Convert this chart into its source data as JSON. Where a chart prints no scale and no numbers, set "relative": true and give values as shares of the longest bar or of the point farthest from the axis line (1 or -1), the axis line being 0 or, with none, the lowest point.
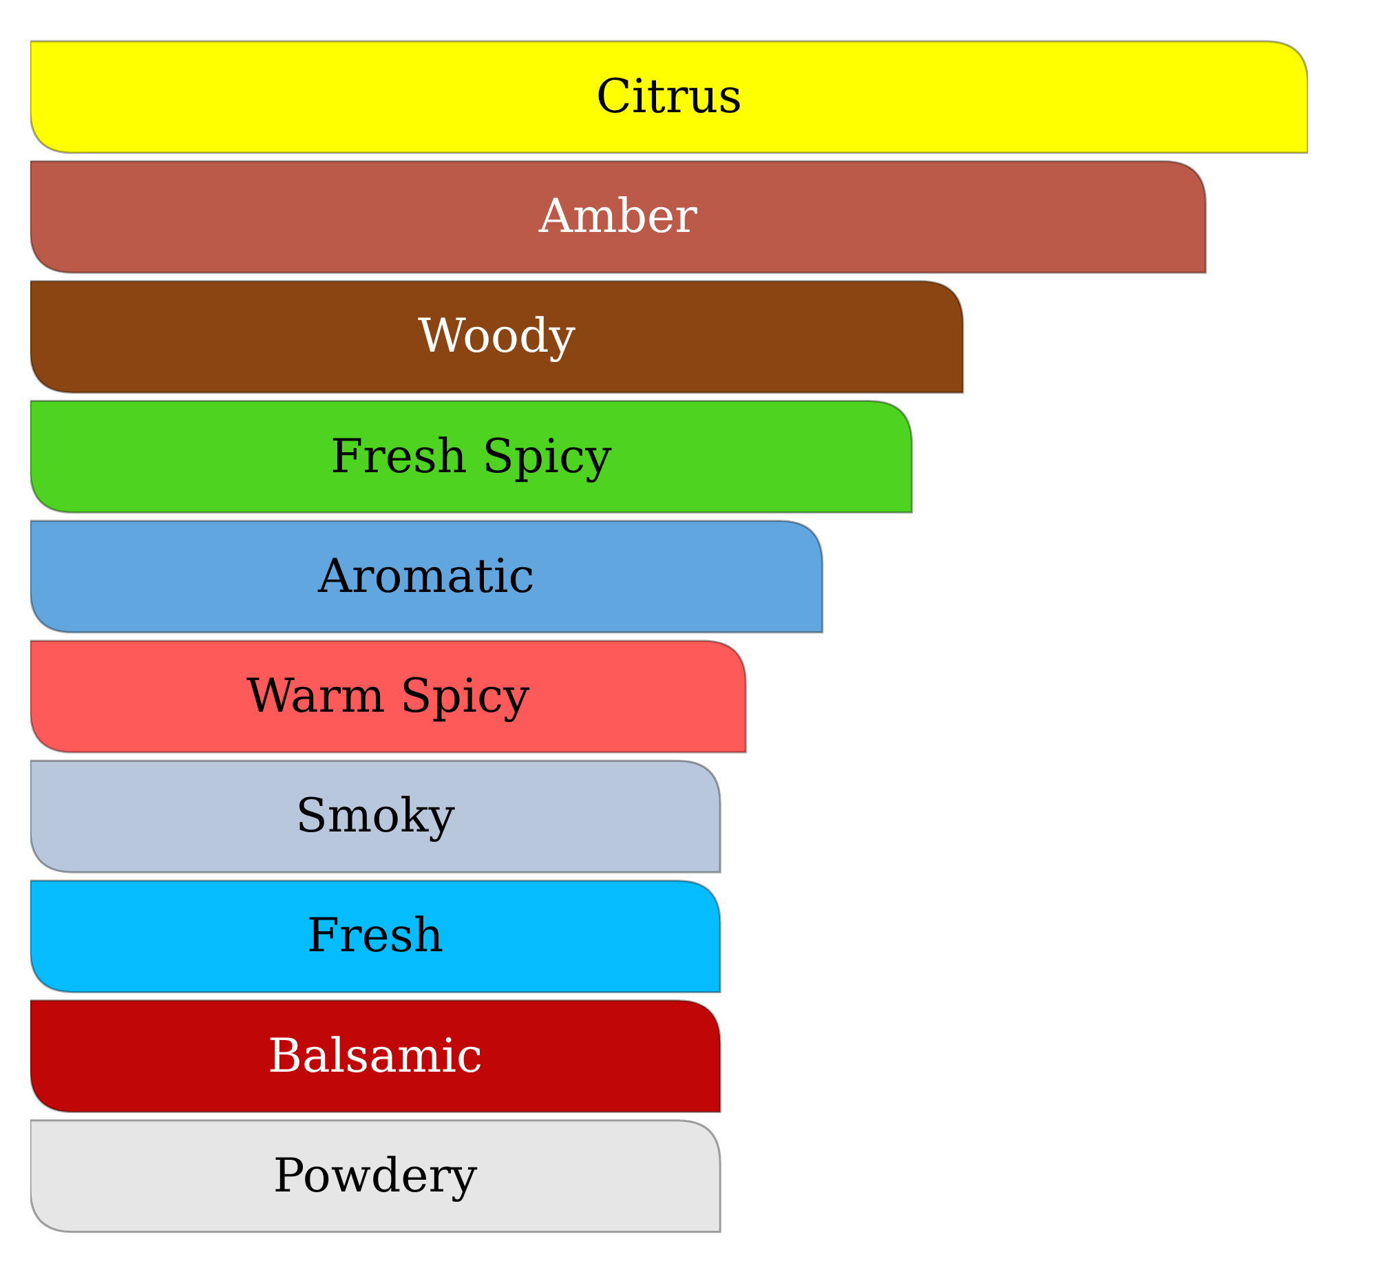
{
  "chart_data": {
    "type": "bar",
    "orientation": "horizontal",
    "relative": true,
    "categories": [
      "Citrus",
      "Amber",
      "Woody",
      "Fresh Spicy",
      "Aromatic",
      "Warm Spicy",
      "Smoky",
      "Fresh",
      "Balsamic",
      "Powdery"
    ],
    "values": [
      1,
      0.92,
      0.73,
      0.69,
      0.62,
      0.56,
      0.54,
      0.54,
      0.54,
      0.54
    ],
    "colors": [
      "#ffff00",
      "#bc5a4a",
      "#8b4513",
      "#4dd320",
      "#62a6e0",
      "#ff5a5a",
      "#b8c7db",
      "#05bcff",
      "#c00606",
      "#e6e6e6"
    ]
  }
}
